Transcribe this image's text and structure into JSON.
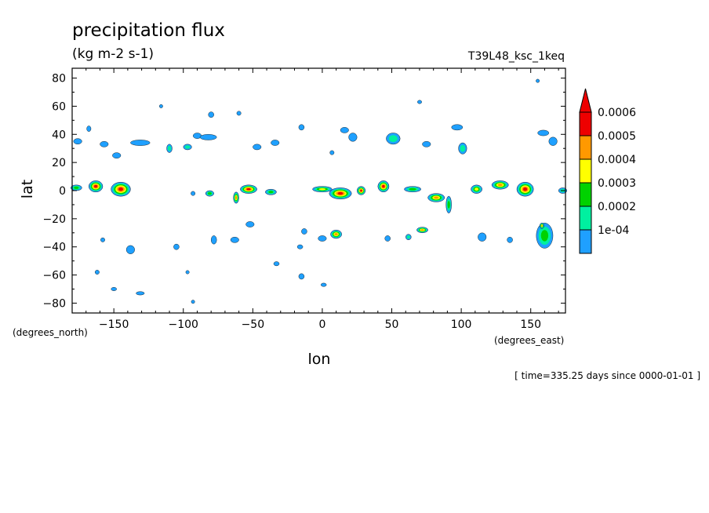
{
  "chart_data": {
    "type": "heatmap",
    "title": "precipitation flux",
    "units": "(kg m-2 s-1)",
    "run_label": "T39L48_ksc_1keq",
    "xlabel": "lon",
    "ylabel": "lat",
    "x_units": "(degrees_east)",
    "y_units": "(degrees_north)",
    "time_caption": "[ time=335.25 days since 0000-01-01 ]",
    "xlim": [
      -180,
      175
    ],
    "ylim": [
      -87,
      87
    ],
    "x_ticks": [
      -150,
      -100,
      -50,
      0,
      50,
      100,
      150
    ],
    "x_tick_labels": [
      "−150",
      "−100",
      "−50",
      "0",
      "50",
      "100",
      "150"
    ],
    "y_ticks": [
      80,
      60,
      40,
      20,
      0,
      -20,
      -40,
      -60,
      -80
    ],
    "y_tick_labels": [
      "80",
      "60",
      "40",
      "20",
      "0",
      "−20",
      "−40",
      "−60",
      "−80"
    ],
    "levels": [
      "1e-04",
      "0.0002",
      "0.0003",
      "0.0004",
      "0.0005",
      "0.0006"
    ],
    "level_colors": [
      "#1fa0ff",
      "#00f0a0",
      "#00d200",
      "#ffff00",
      "#ff9900",
      "#ee0000"
    ],
    "features": [
      {
        "lon": -177,
        "lat": 2,
        "rlon": 4,
        "rlat": 2,
        "max": 3
      },
      {
        "lon": -163,
        "lat": 3,
        "rlon": 5,
        "rlat": 4,
        "max": 6
      },
      {
        "lon": -145,
        "lat": 1,
        "rlon": 7,
        "rlat": 5,
        "max": 6
      },
      {
        "lon": -81,
        "lat": -2,
        "rlon": 3,
        "rlat": 2,
        "max": 3
      },
      {
        "lon": -93,
        "lat": -2,
        "rlon": 1.5,
        "rlat": 1.5,
        "max": 1
      },
      {
        "lon": -53,
        "lat": 1,
        "rlon": 6,
        "rlat": 3,
        "max": 6
      },
      {
        "lon": -62,
        "lat": -5,
        "rlon": 2,
        "rlat": 4,
        "max": 5
      },
      {
        "lon": -37,
        "lat": -1,
        "rlon": 4,
        "rlat": 2,
        "max": 3
      },
      {
        "lon": 0,
        "lat": 1,
        "rlon": 7,
        "rlat": 2,
        "max": 4
      },
      {
        "lon": 13,
        "lat": -2,
        "rlon": 8,
        "rlat": 4,
        "max": 6
      },
      {
        "lon": 28,
        "lat": 0,
        "rlon": 3,
        "rlat": 3,
        "max": 6
      },
      {
        "lon": 44,
        "lat": 3,
        "rlon": 4,
        "rlat": 4,
        "max": 6
      },
      {
        "lon": 65,
        "lat": 1,
        "rlon": 6,
        "rlat": 2,
        "max": 3
      },
      {
        "lon": 82,
        "lat": -5,
        "rlon": 6,
        "rlat": 3,
        "max": 5
      },
      {
        "lon": 91,
        "lat": -10,
        "rlon": 2,
        "rlat": 6,
        "max": 3
      },
      {
        "lon": 111,
        "lat": 1,
        "rlon": 4,
        "rlat": 3,
        "max": 4
      },
      {
        "lon": 128,
        "lat": 4,
        "rlon": 6,
        "rlat": 3,
        "max": 5
      },
      {
        "lon": 146,
        "lat": 1,
        "rlon": 6,
        "rlat": 5,
        "max": 6
      },
      {
        "lon": 173,
        "lat": 0,
        "rlon": 3,
        "rlat": 2,
        "max": 2
      },
      {
        "lon": -157,
        "lat": 33,
        "rlon": 3,
        "rlat": 2,
        "max": 1
      },
      {
        "lon": -148,
        "lat": 25,
        "rlon": 3,
        "rlat": 2,
        "max": 1
      },
      {
        "lon": -131,
        "lat": 34,
        "rlon": 7,
        "rlat": 2,
        "max": 1
      },
      {
        "lon": -110,
        "lat": 30,
        "rlon": 2,
        "rlat": 3,
        "max": 2
      },
      {
        "lon": -97,
        "lat": 31,
        "rlon": 3,
        "rlat": 2,
        "max": 2
      },
      {
        "lon": -90,
        "lat": 39,
        "rlon": 3,
        "rlat": 2,
        "max": 1
      },
      {
        "lon": -82,
        "lat": 38,
        "rlon": 6,
        "rlat": 2,
        "max": 1
      },
      {
        "lon": -47,
        "lat": 31,
        "rlon": 3,
        "rlat": 2,
        "max": 1
      },
      {
        "lon": -34,
        "lat": 34,
        "rlon": 3,
        "rlat": 2,
        "max": 1
      },
      {
        "lon": -15,
        "lat": 45,
        "rlon": 2,
        "rlat": 2,
        "max": 1
      },
      {
        "lon": 16,
        "lat": 43,
        "rlon": 3,
        "rlat": 2,
        "max": 1
      },
      {
        "lon": 22,
        "lat": 38,
        "rlon": 3,
        "rlat": 3,
        "max": 1
      },
      {
        "lon": 51,
        "lat": 37,
        "rlon": 5,
        "rlat": 4,
        "max": 2
      },
      {
        "lon": 75,
        "lat": 33,
        "rlon": 3,
        "rlat": 2,
        "max": 1
      },
      {
        "lon": 101,
        "lat": 30,
        "rlon": 3,
        "rlat": 4,
        "max": 2
      },
      {
        "lon": 97,
        "lat": 45,
        "rlon": 4,
        "rlat": 2,
        "max": 1
      },
      {
        "lon": 159,
        "lat": 41,
        "rlon": 4,
        "rlat": 2,
        "max": 1
      },
      {
        "lon": 166,
        "lat": 35,
        "rlon": 3,
        "rlat": 3,
        "max": 1
      },
      {
        "lon": -60,
        "lat": 55,
        "rlon": 1.5,
        "rlat": 1.5,
        "max": 1
      },
      {
        "lon": -80,
        "lat": 54,
        "rlon": 2,
        "rlat": 2,
        "max": 1
      },
      {
        "lon": 7,
        "lat": 27,
        "rlon": 1.5,
        "rlat": 1.5,
        "max": 1
      },
      {
        "lon": -168,
        "lat": 44,
        "rlon": 1.5,
        "rlat": 2,
        "max": 1
      },
      {
        "lon": -176,
        "lat": 35,
        "rlon": 3,
        "rlat": 2,
        "max": 1
      },
      {
        "lon": -138,
        "lat": -42,
        "rlon": 3,
        "rlat": 3,
        "max": 1
      },
      {
        "lon": -158,
        "lat": -35,
        "rlon": 1.5,
        "rlat": 1.5,
        "max": 1
      },
      {
        "lon": -105,
        "lat": -40,
        "rlon": 2,
        "rlat": 2,
        "max": 1
      },
      {
        "lon": -78,
        "lat": -35,
        "rlon": 2,
        "rlat": 3,
        "max": 1
      },
      {
        "lon": -63,
        "lat": -35,
        "rlon": 3,
        "rlat": 2,
        "max": 1
      },
      {
        "lon": -52,
        "lat": -24,
        "rlon": 3,
        "rlat": 2,
        "max": 1
      },
      {
        "lon": -13,
        "lat": -29,
        "rlon": 2,
        "rlat": 2,
        "max": 1
      },
      {
        "lon": 0,
        "lat": -34,
        "rlon": 3,
        "rlat": 2,
        "max": 1
      },
      {
        "lon": 10,
        "lat": -31,
        "rlon": 4,
        "rlat": 3,
        "max": 5
      },
      {
        "lon": 47,
        "lat": -34,
        "rlon": 2,
        "rlat": 2,
        "max": 1
      },
      {
        "lon": 62,
        "lat": -33,
        "rlon": 2,
        "rlat": 2,
        "max": 2
      },
      {
        "lon": 72,
        "lat": -28,
        "rlon": 4,
        "rlat": 2,
        "max": 5
      },
      {
        "lon": 115,
        "lat": -33,
        "rlon": 3,
        "rlat": 3,
        "max": 1
      },
      {
        "lon": 135,
        "lat": -35,
        "rlon": 2,
        "rlat": 2,
        "max": 1
      },
      {
        "lon": 160,
        "lat": -32,
        "rlon": 6,
        "rlat": 9,
        "max": 3
      },
      {
        "lon": 158,
        "lat": -25,
        "rlon": 1.5,
        "rlat": 2,
        "max": 5
      },
      {
        "lon": -16,
        "lat": -40,
        "rlon": 2,
        "rlat": 1.5,
        "max": 1
      },
      {
        "lon": -33,
        "lat": -52,
        "rlon": 2,
        "rlat": 1.5,
        "max": 1
      },
      {
        "lon": -162,
        "lat": -58,
        "rlon": 1.5,
        "rlat": 1.5,
        "max": 1
      },
      {
        "lon": -97,
        "lat": -58,
        "rlon": 1,
        "rlat": 1,
        "max": 1
      },
      {
        "lon": -15,
        "lat": -61,
        "rlon": 2,
        "rlat": 2,
        "max": 1
      },
      {
        "lon": 1,
        "lat": -67,
        "rlon": 2,
        "rlat": 1,
        "max": 1
      },
      {
        "lon": -150,
        "lat": -70,
        "rlon": 2,
        "rlat": 1,
        "max": 1
      },
      {
        "lon": -131,
        "lat": -73,
        "rlon": 3,
        "rlat": 1,
        "max": 1
      },
      {
        "lon": -93,
        "lat": -79,
        "rlon": 1,
        "rlat": 1,
        "max": 1
      },
      {
        "lon": 70,
        "lat": 63,
        "rlon": 1.5,
        "rlat": 1,
        "max": 1
      },
      {
        "lon": 155,
        "lat": 78,
        "rlon": 1,
        "rlat": 1,
        "max": 1
      },
      {
        "lon": -116,
        "lat": 60,
        "rlon": 1,
        "rlat": 1,
        "max": 1
      }
    ]
  }
}
